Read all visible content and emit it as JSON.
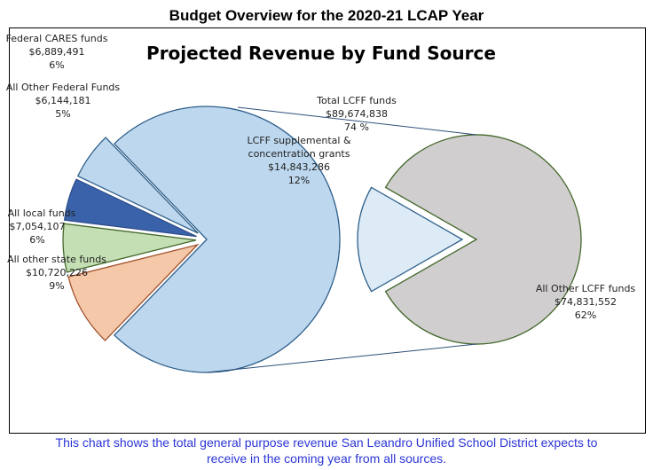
{
  "header": {
    "title": "Budget Overview for the 2020-21 LCAP Year"
  },
  "caption": {
    "line1": "This chart shows the total general purpose revenue San Leandro Unified School District expects to",
    "line2": "receive in the coming year from all sources."
  },
  "chart_data": {
    "type": "pie",
    "subtype": "pie-of-pie",
    "title": "Projected Revenue by Fund Source",
    "main": [
      {
        "name": "Total LCFF funds",
        "value": 89674838,
        "percent": "74 %",
        "color": "#bdd7ee",
        "stroke": "#2e5f8a"
      },
      {
        "name": "Federal CARES funds",
        "value": 6889491,
        "percent": "6%",
        "color": "#bdd7ee",
        "stroke": "#2e5f8a"
      },
      {
        "name": "All Other Federal Funds",
        "value": 6144181,
        "percent": "5%",
        "color": "#3a62aa",
        "stroke": "#2e4f8a"
      },
      {
        "name": "All local funds",
        "value": 7054107,
        "percent": "6%",
        "color": "#c5dfb4",
        "stroke": "#44682c"
      },
      {
        "name": "All other state funds",
        "value": 10720226,
        "percent": "9%",
        "color": "#f6c8aa",
        "stroke": "#a0522d"
      }
    ],
    "secondary": [
      {
        "name": "LCFF supplemental & concentration grants",
        "value": 14843286,
        "percent": "12%",
        "color": "#ddebf7",
        "stroke": "#2e5f8a"
      },
      {
        "name": "All Other LCFF funds",
        "value": 74831552,
        "percent": "62%",
        "color": "#d0cece",
        "stroke": "#44682c"
      }
    ],
    "labels": {
      "cares": [
        "Federal CARES funds",
        "$6,889,491",
        "6%"
      ],
      "fed": [
        "All Other Federal Funds",
        "$6,144,181",
        "5%"
      ],
      "local": [
        "All local funds",
        "$7,054,107",
        "6%"
      ],
      "state": [
        "All other state funds",
        "$10,720,226",
        "9%"
      ],
      "lcff": [
        "Total LCFF funds",
        "$89,674,838",
        "74 %"
      ],
      "supp": [
        "LCFF supplemental &",
        "concentration grants",
        "$14,843,286",
        "12%"
      ],
      "other": [
        "All Other LCFF funds",
        "$74,831,552",
        "62%"
      ]
    }
  }
}
